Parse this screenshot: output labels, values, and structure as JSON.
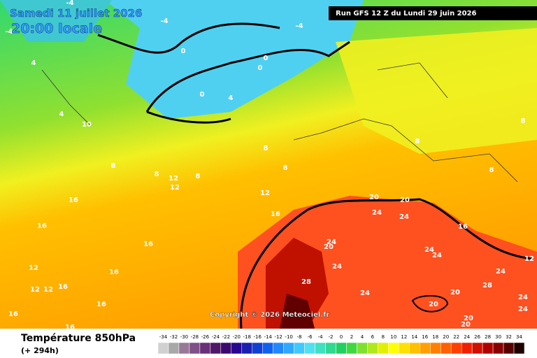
{
  "header": {
    "date": "Samedi 11 juillet 2026",
    "time": "20:00 locale",
    "run": "Run GFS 12 Z du Lundi 29 juin 2026"
  },
  "map": {
    "contour_labels": [
      -4,
      -4,
      -4,
      -4,
      4,
      4,
      4,
      0,
      0,
      0,
      0,
      10,
      8,
      8,
      8,
      8,
      8,
      8,
      8,
      8,
      12,
      12,
      12,
      16,
      16,
      16,
      16,
      16,
      12,
      16,
      16,
      20,
      20,
      24,
      24,
      24,
      20,
      24,
      28,
      24,
      24,
      24,
      20,
      20,
      24,
      28,
      24,
      24,
      20,
      20,
      16,
      16,
      12,
      12,
      16,
      4,
      12
    ],
    "copyright": "Copyright © 2026 Meteociel.fr"
  },
  "legend": {
    "title": "Température 850hPa",
    "subtitle": "(+ 294h)",
    "scale": [
      -34,
      -32,
      -30,
      -28,
      -26,
      -24,
      -22,
      -20,
      -18,
      -16,
      -14,
      -12,
      -10,
      -8,
      -6,
      -4,
      -2,
      0,
      2,
      4,
      6,
      8,
      10,
      12,
      14,
      16,
      18,
      20,
      22,
      24,
      26,
      28,
      30,
      32,
      34
    ],
    "colors": [
      "#d0d0d0",
      "#a8a8a8",
      "#987898",
      "#805088",
      "#6a3078",
      "#501868",
      "#3a0a70",
      "#280890",
      "#1a20b0",
      "#1040d0",
      "#1060f0",
      "#2088ff",
      "#30a8ff",
      "#40c8ff",
      "#50e0f0",
      "#40e0c0",
      "#30d890",
      "#20d060",
      "#40d840",
      "#80e030",
      "#b0e820",
      "#e0f000",
      "#ffff00",
      "#ffe000",
      "#ffc000",
      "#ffa000",
      "#ff8000",
      "#ff6000",
      "#ff4000",
      "#f02000",
      "#d01000",
      "#b00000",
      "#880000",
      "#580000",
      "#200000"
    ]
  }
}
